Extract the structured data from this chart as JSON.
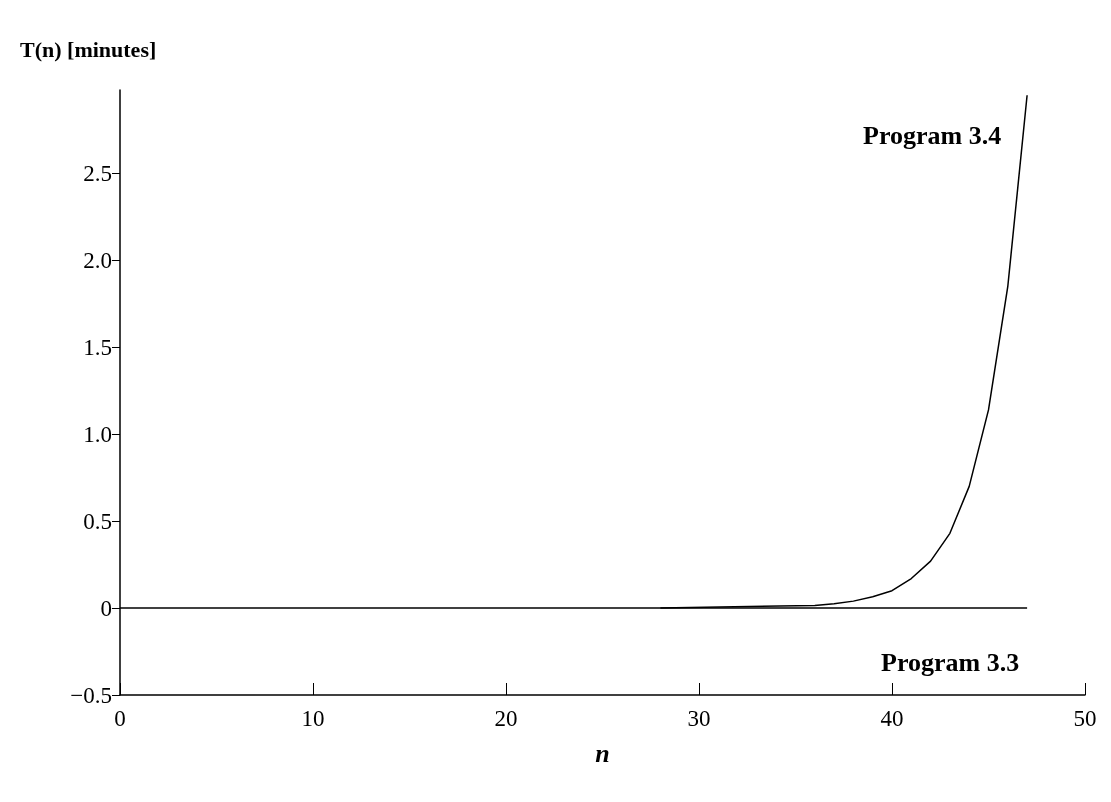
{
  "chart_data": {
    "type": "line",
    "xlabel": "n",
    "ylabel": "T(n) [minutes]",
    "xlim": [
      0,
      50
    ],
    "xticks": [
      0,
      10,
      20,
      30,
      40,
      50
    ],
    "ylim": [
      -0.5,
      2.98
    ],
    "yticks": [
      -0.5,
      0,
      0.5,
      {
        "value": 1,
        "label": "1.0"
      },
      1.5,
      {
        "value": 2,
        "label": "2.0"
      },
      2.5
    ],
    "grid": false,
    "legend": false,
    "marker": "none",
    "line_style": "solid",
    "series": [
      {
        "name": "Program 3.4",
        "color": "#000000",
        "x": [
          28,
          36,
          37,
          38,
          39,
          40,
          41,
          42,
          43,
          44,
          45,
          46,
          47
        ],
        "values": [
          0.0,
          0.015,
          0.025,
          0.04,
          0.065,
          0.1,
          0.17,
          0.27,
          0.43,
          0.7,
          1.14,
          1.85,
          2.95
        ]
      },
      {
        "name": "Program 3.3",
        "color": "#000000",
        "x": [
          0,
          47
        ],
        "values": [
          0,
          0
        ]
      }
    ]
  }
}
